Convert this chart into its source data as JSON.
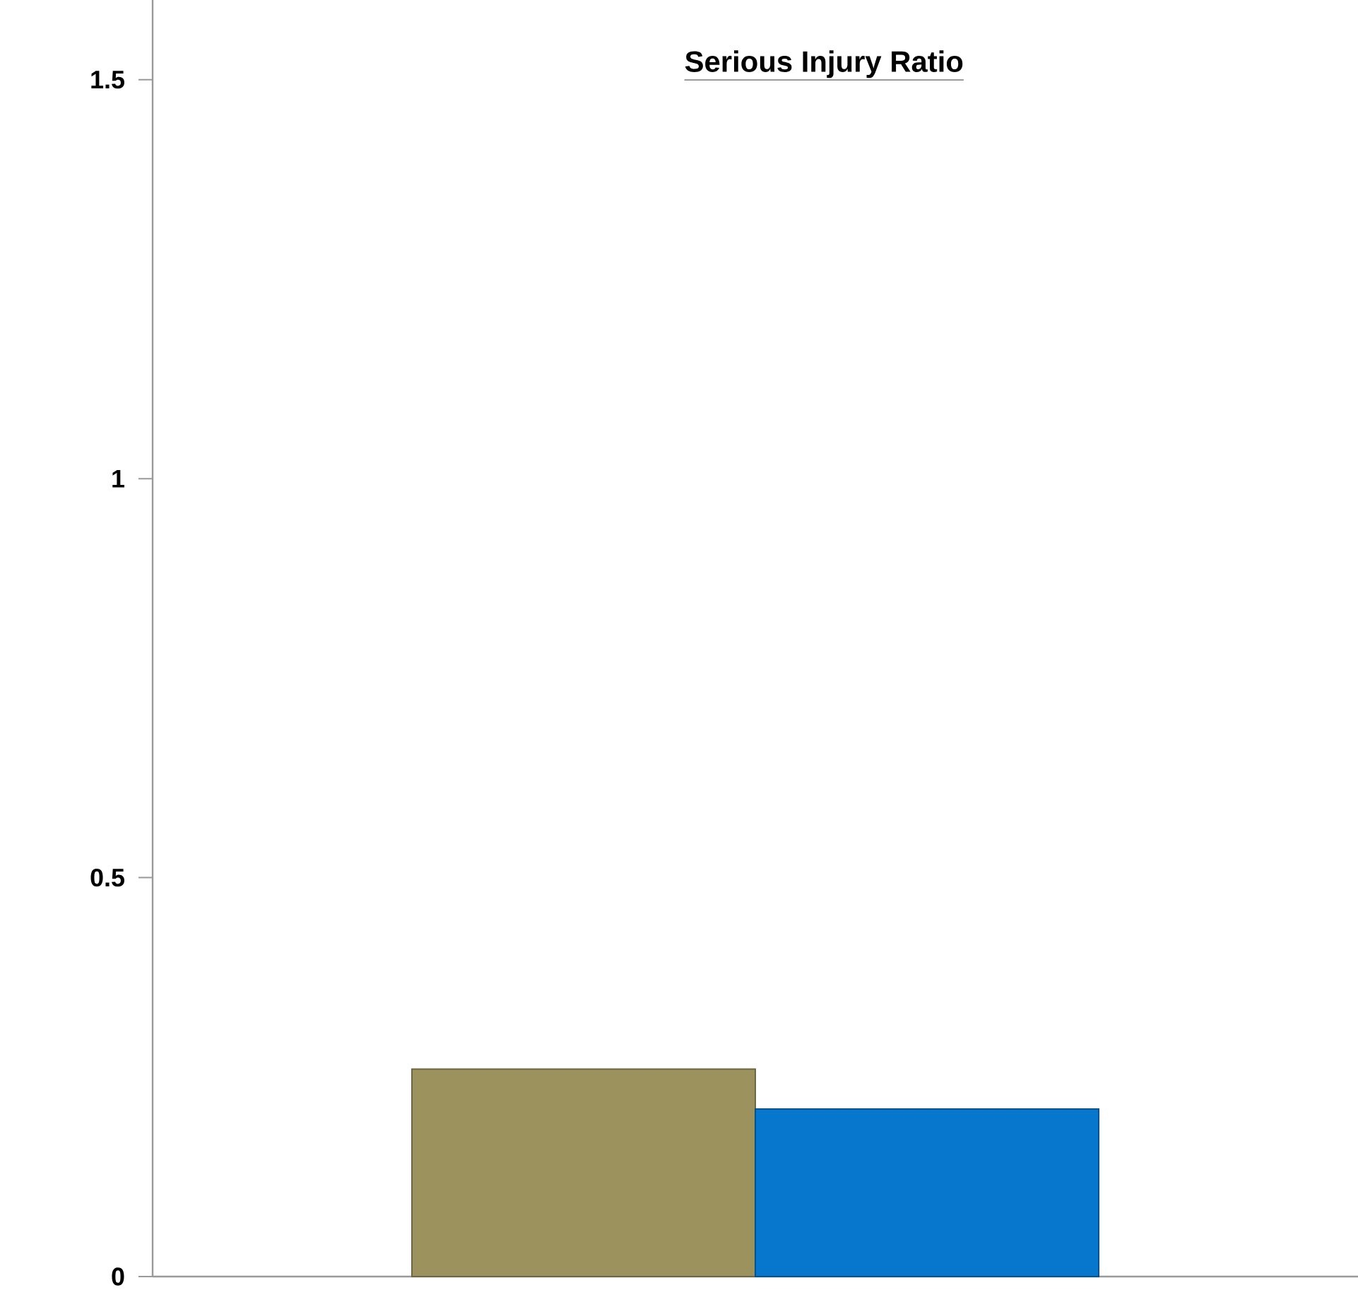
{
  "chart_data": {
    "type": "bar",
    "title": "Serious Injury Ratio",
    "categories": [
      null
    ],
    "series": [
      {
        "color": "#9c925e",
        "values": [
          0.26
        ]
      },
      {
        "color": "#0677cc",
        "values": [
          0.21
        ]
      }
    ],
    "ylim": [
      0,
      1.6
    ],
    "yticks": [
      0,
      0.5,
      1,
      1.5
    ],
    "tick_labels": "y"
  }
}
